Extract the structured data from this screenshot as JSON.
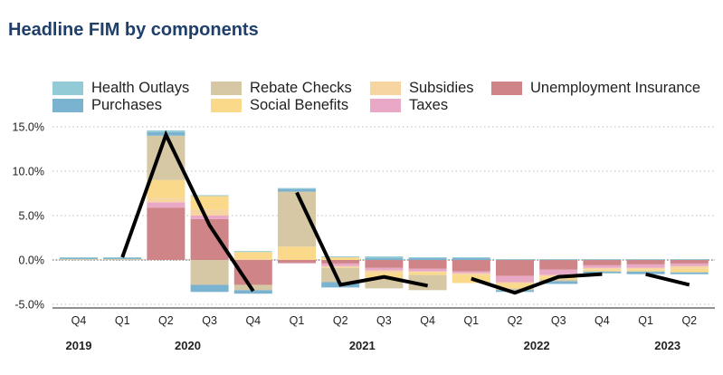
{
  "chart_data": {
    "type": "bar",
    "stacked": true,
    "title": "Headline FIM by components",
    "xlabel": "",
    "ylabel": "",
    "ylim": [
      -5.6,
      15.6
    ],
    "yticks": [
      "15.0%",
      "10.0%",
      "5.0%",
      "0.0%",
      "-5.0%"
    ],
    "ytick_values": [
      15,
      10,
      5,
      0,
      -5
    ],
    "grid": "horizontal-dotted",
    "legend_position": "top",
    "categories": [
      "Q4",
      "Q1",
      "Q2",
      "Q3",
      "Q4",
      "Q1",
      "Q2",
      "Q3",
      "Q4",
      "Q1",
      "Q2",
      "Q3",
      "Q4",
      "Q1",
      "Q2"
    ],
    "year_labels": [
      {
        "label": "2019",
        "category_index": 0
      },
      {
        "label": "2020",
        "category_index": 2.5
      },
      {
        "label": "2021",
        "category_index": 6.5
      },
      {
        "label": "2022",
        "category_index": 10.5
      },
      {
        "label": "2023",
        "category_index": 13.5
      }
    ],
    "stack_order": [
      "Unemployment Insurance",
      "Taxes",
      "Subsidies",
      "Social Benefits",
      "Rebate Checks",
      "Purchases",
      "Health Outlays"
    ],
    "series": [
      {
        "name": "Health Outlays",
        "color": "#92cad6",
        "values": [
          0.1,
          0.1,
          0.2,
          0.1,
          0.1,
          0.1,
          0.1,
          0.2,
          0.1,
          0.1,
          0.1,
          0.1,
          0.1,
          0.1,
          0.1
        ]
      },
      {
        "name": "Purchases",
        "color": "#7ab3d0",
        "values": [
          0.1,
          0.1,
          0.4,
          -0.8,
          -0.4,
          0.3,
          -0.6,
          0.2,
          0.2,
          0.2,
          -0.2,
          -0.3,
          -0.2,
          -0.3,
          -0.2
        ]
      },
      {
        "name": "Rebate Checks",
        "color": "#d6c7a5",
        "values": [
          0.1,
          0.1,
          5.0,
          -2.8,
          -0.6,
          6.2,
          -1.6,
          -1.2,
          -1.7,
          0.0,
          -0.2,
          -0.2,
          0.0,
          0.0,
          0.0
        ]
      },
      {
        "name": "Social Benefits",
        "color": "#fbd98a",
        "values": [
          0.0,
          0.0,
          2.0,
          1.5,
          0.8,
          1.5,
          0.3,
          -0.5,
          -0.3,
          -0.9,
          -0.5,
          -0.3,
          -0.2,
          -0.2,
          -0.4
        ]
      },
      {
        "name": "Subsidies",
        "color": "#f6d5a1",
        "values": [
          0.0,
          0.0,
          0.5,
          0.7,
          0.1,
          0.0,
          -0.2,
          -0.3,
          -0.1,
          -0.2,
          -0.2,
          -0.2,
          -0.2,
          -0.2,
          -0.3
        ]
      },
      {
        "name": "Taxes",
        "color": "#e9a9c6",
        "values": [
          0.0,
          0.0,
          0.6,
          0.4,
          0.0,
          -0.1,
          -0.3,
          -0.3,
          -0.3,
          -0.2,
          -0.7,
          -0.6,
          -0.3,
          -0.4,
          -0.3
        ]
      },
      {
        "name": "Unemployment Insurance",
        "color": "#cf8587",
        "values": [
          0.0,
          0.0,
          5.9,
          4.6,
          -2.8,
          -0.3,
          -0.4,
          -0.9,
          -1.0,
          -1.3,
          -1.8,
          -1.1,
          -0.6,
          -0.5,
          -0.4
        ]
      }
    ],
    "line": {
      "name": "Headline FIM",
      "color": "#000000",
      "segments": [
        {
          "start_index": 1,
          "values": [
            0.3,
            14.1,
            3.9,
            -3.5
          ]
        },
        {
          "start_index": 5,
          "values": [
            7.6,
            -2.8,
            -1.9,
            -2.9
          ]
        },
        {
          "start_index": 9,
          "values": [
            -2.1,
            -3.7,
            -1.9,
            -1.6
          ]
        },
        {
          "start_index": 13,
          "values": [
            -1.6,
            -2.8
          ]
        }
      ]
    }
  },
  "legend": {
    "items": [
      {
        "label": "Health Outlays",
        "color": "#92cad6"
      },
      {
        "label": "Purchases",
        "color": "#7ab3d0"
      },
      {
        "label": "Rebate Checks",
        "color": "#d6c7a5"
      },
      {
        "label": "Social Benefits",
        "color": "#fbd98a"
      },
      {
        "label": "Subsidies",
        "color": "#f6d5a1"
      },
      {
        "label": "Taxes",
        "color": "#e9a9c6"
      },
      {
        "label": "Unemployment Insurance",
        "color": "#cf8587"
      }
    ]
  }
}
